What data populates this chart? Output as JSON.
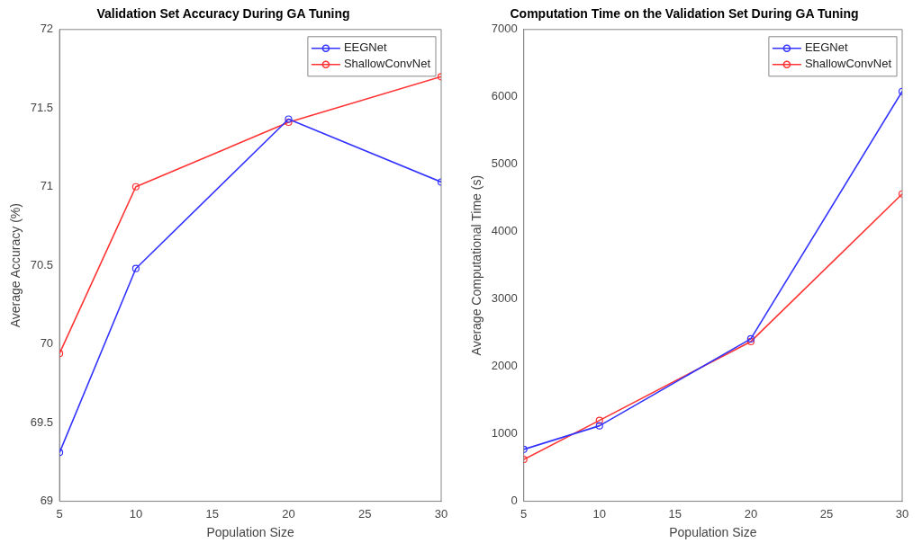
{
  "chart_data": [
    {
      "type": "line",
      "title": "Validation Set Accuracy During GA Tuning",
      "xlabel": "Population Size",
      "ylabel": "Average Accuracy (%)",
      "x": [
        5,
        10,
        20,
        30
      ],
      "xlim": [
        5,
        30
      ],
      "xticks": [
        5,
        10,
        15,
        20,
        25,
        30
      ],
      "ylim": [
        69,
        72
      ],
      "yticks": [
        69,
        69.5,
        70,
        70.5,
        71,
        71.5,
        72
      ],
      "marker": "circle",
      "legend": "top right",
      "series": [
        {
          "name": "EEGNet",
          "color": "#3333ff",
          "values": [
            69.31,
            70.48,
            71.43,
            71.03
          ]
        },
        {
          "name": "ShallowConvNet",
          "color": "#ff3333",
          "values": [
            69.94,
            71.0,
            71.41,
            71.7
          ]
        }
      ]
    },
    {
      "type": "line",
      "title": "Computation Time on the Validation Set During GA Tuning",
      "xlabel": "Population Size",
      "ylabel": "Average Computational Time (s)",
      "x": [
        5,
        10,
        20,
        30
      ],
      "xlim": [
        5,
        30
      ],
      "xticks": [
        5,
        10,
        15,
        20,
        25,
        30
      ],
      "ylim": [
        0,
        7000
      ],
      "yticks": [
        0,
        1000,
        2000,
        3000,
        4000,
        5000,
        6000,
        7000
      ],
      "marker": "circle",
      "legend": "top right",
      "series": [
        {
          "name": "EEGNet",
          "color": "#3333ff",
          "values": [
            770,
            1120,
            2410,
            6080
          ]
        },
        {
          "name": "ShallowConvNet",
          "color": "#ff3333",
          "values": [
            620,
            1200,
            2370,
            4560
          ]
        }
      ]
    }
  ]
}
